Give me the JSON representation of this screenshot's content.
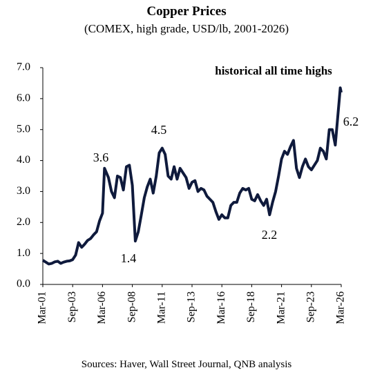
{
  "chart_data": {
    "type": "line",
    "title": "Copper Prices",
    "subtitle": "(COMEX, high grade, USD/lb, 2001-2026)",
    "source": "Sources: Haver, Wall Street Journal, QNB analysis",
    "annotations": [
      "historical all time highs",
      "3.6",
      "1.4",
      "4.5",
      "2.2",
      "6.2"
    ],
    "color": "#0f1a3c",
    "x": [
      "2001-03",
      "2001-06",
      "2001-09",
      "2001-12",
      "2002-03",
      "2002-06",
      "2002-09",
      "2002-12",
      "2003-03",
      "2003-06",
      "2003-09",
      "2003-12",
      "2004-03",
      "2004-06",
      "2004-09",
      "2004-12",
      "2005-03",
      "2005-06",
      "2005-09",
      "2005-12",
      "2006-03",
      "2006-05",
      "2006-09",
      "2006-12",
      "2007-03",
      "2007-06",
      "2007-09",
      "2007-12",
      "2008-03",
      "2008-06",
      "2008-09",
      "2008-12",
      "2009-03",
      "2009-06",
      "2009-09",
      "2009-12",
      "2010-03",
      "2010-06",
      "2010-09",
      "2010-12",
      "2011-03",
      "2011-06",
      "2011-09",
      "2011-12",
      "2012-03",
      "2012-06",
      "2012-09",
      "2012-12",
      "2013-03",
      "2013-06",
      "2013-09",
      "2013-12",
      "2014-03",
      "2014-06",
      "2014-09",
      "2014-12",
      "2015-03",
      "2015-06",
      "2015-09",
      "2015-12",
      "2016-03",
      "2016-06",
      "2016-09",
      "2016-12",
      "2017-03",
      "2017-06",
      "2017-09",
      "2017-12",
      "2018-03",
      "2018-06",
      "2018-09",
      "2018-12",
      "2019-03",
      "2019-06",
      "2019-09",
      "2019-12",
      "2020-03",
      "2020-06",
      "2020-09",
      "2020-12",
      "2021-03",
      "2021-06",
      "2021-09",
      "2021-12",
      "2022-03",
      "2022-06",
      "2022-09",
      "2022-12",
      "2023-03",
      "2023-06",
      "2023-09",
      "2023-12",
      "2024-03",
      "2024-06",
      "2024-09",
      "2024-12",
      "2025-03",
      "2025-06",
      "2025-09",
      "2025-12",
      "2026-01",
      "2026-02",
      "2026-03"
    ],
    "values": [
      0.78,
      0.72,
      0.66,
      0.68,
      0.73,
      0.75,
      0.68,
      0.72,
      0.75,
      0.76,
      0.8,
      0.95,
      1.35,
      1.2,
      1.3,
      1.42,
      1.48,
      1.6,
      1.7,
      2.05,
      2.3,
      3.75,
      3.45,
      3.0,
      2.8,
      3.5,
      3.45,
      3.05,
      3.8,
      3.85,
      3.2,
      1.4,
      1.7,
      2.25,
      2.8,
      3.15,
      3.4,
      2.95,
      3.5,
      4.25,
      4.4,
      4.2,
      3.5,
      3.4,
      3.8,
      3.4,
      3.75,
      3.6,
      3.45,
      3.1,
      3.3,
      3.35,
      3.0,
      3.1,
      3.05,
      2.85,
      2.75,
      2.65,
      2.35,
      2.1,
      2.25,
      2.15,
      2.15,
      2.55,
      2.65,
      2.65,
      2.95,
      3.1,
      3.05,
      3.1,
      2.75,
      2.7,
      2.9,
      2.7,
      2.55,
      2.75,
      2.25,
      2.65,
      3.0,
      3.5,
      4.05,
      4.3,
      4.2,
      4.45,
      4.65,
      3.75,
      3.45,
      3.8,
      4.05,
      3.8,
      3.7,
      3.85,
      4.0,
      4.4,
      4.3,
      4.05,
      5.0,
      5.0,
      4.5,
      5.6,
      5.95,
      6.35,
      6.2
    ],
    "xlim": [
      "2001-03",
      "2026-03"
    ],
    "xticks": [
      {
        "value": "2001-03",
        "label": "Mar-01"
      },
      {
        "value": "2003-09",
        "label": "Sep-03"
      },
      {
        "value": "2006-03",
        "label": "Mar-06"
      },
      {
        "value": "2008-09",
        "label": "Sep-08"
      },
      {
        "value": "2011-03",
        "label": "Mar-11"
      },
      {
        "value": "2013-09",
        "label": "Sep-13"
      },
      {
        "value": "2016-03",
        "label": "Mar-16"
      },
      {
        "value": "2018-09",
        "label": "Sep-18"
      },
      {
        "value": "2021-03",
        "label": "Mar-21"
      },
      {
        "value": "2023-09",
        "label": "Sep-23"
      },
      {
        "value": "2026-03",
        "label": "Mar-26"
      }
    ],
    "ylim": [
      0,
      7
    ],
    "yticks": [
      {
        "value": 0,
        "label": "0.0"
      },
      {
        "value": 1,
        "label": "1.0"
      },
      {
        "value": 2,
        "label": "2.0"
      },
      {
        "value": 3,
        "label": "3.0"
      },
      {
        "value": 4,
        "label": "4.0"
      },
      {
        "value": 5,
        "label": "5.0"
      },
      {
        "value": 6,
        "label": "6.0"
      },
      {
        "value": 7,
        "label": "7.0"
      }
    ],
    "grid": false
  }
}
